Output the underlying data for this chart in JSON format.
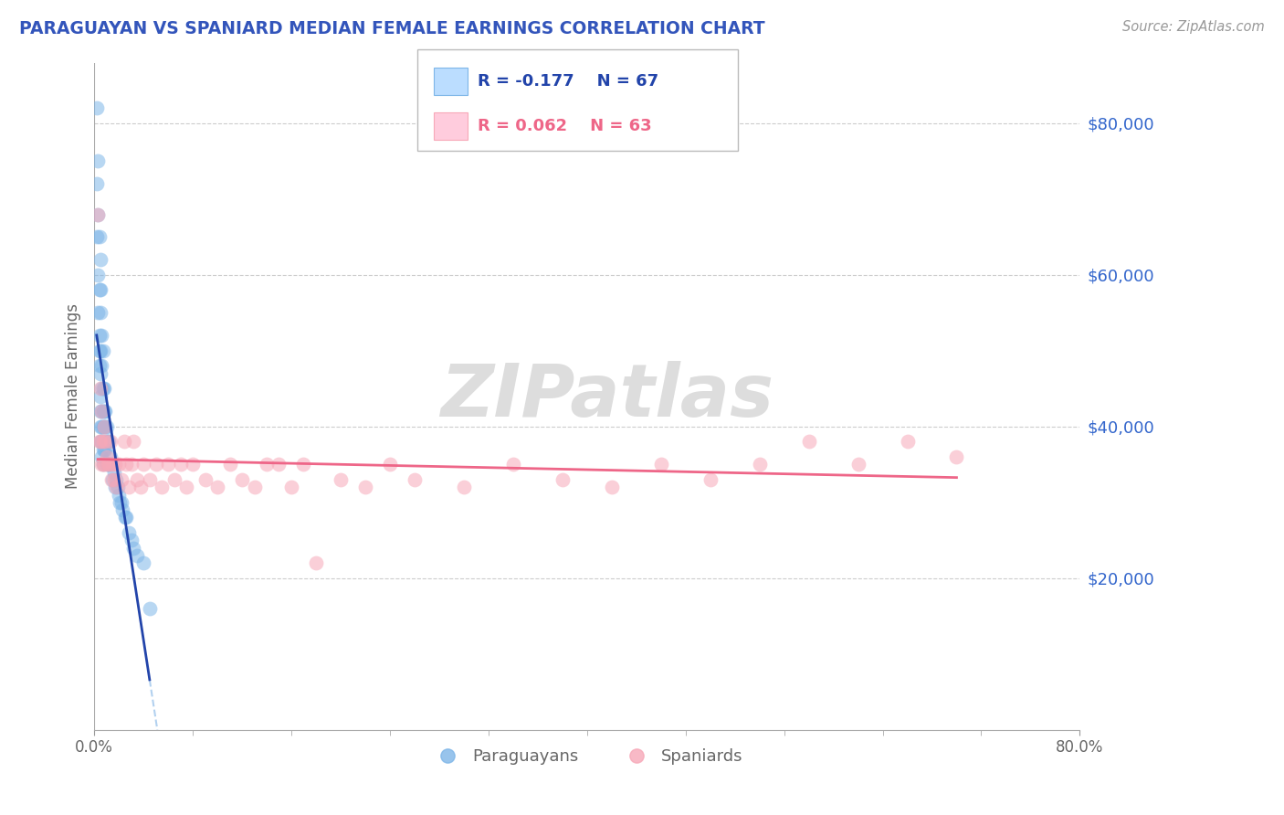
{
  "title": "PARAGUAYAN VS SPANIARD MEDIAN FEMALE EARNINGS CORRELATION CHART",
  "source_text": "Source: ZipAtlas.com",
  "ylabel": "Median Female Earnings",
  "xlim": [
    0.0,
    0.8
  ],
  "ylim": [
    0,
    88000
  ],
  "ytick_labels": [
    "$20,000",
    "$40,000",
    "$60,000",
    "$80,000"
  ],
  "ytick_values": [
    20000,
    40000,
    60000,
    80000
  ],
  "xtick_labels": [
    "0.0%",
    "80.0%"
  ],
  "xtick_values": [
    0.0,
    0.8
  ],
  "legend_r1": "R = -0.177",
  "legend_n1": "N = 67",
  "legend_r2": "R = 0.062",
  "legend_n2": "N = 63",
  "blue_color": "#7EB6E8",
  "pink_color": "#F7A8B8",
  "blue_line_color": "#2244AA",
  "pink_line_color": "#EE6688",
  "dashed_line_color": "#AACCEE",
  "legend_blue_box": "#BBDDFF",
  "legend_pink_box": "#FFCCDD",
  "title_color": "#3355BB",
  "axis_label_color": "#666666",
  "ytick_color": "#3366CC",
  "grid_color": "#CCCCCC",
  "watermark_color": "#DDDDDD",
  "paraguayan_x": [
    0.002,
    0.002,
    0.002,
    0.003,
    0.003,
    0.003,
    0.003,
    0.004,
    0.004,
    0.004,
    0.004,
    0.004,
    0.005,
    0.005,
    0.005,
    0.005,
    0.005,
    0.005,
    0.005,
    0.005,
    0.005,
    0.006,
    0.006,
    0.006,
    0.006,
    0.006,
    0.006,
    0.006,
    0.007,
    0.007,
    0.007,
    0.007,
    0.007,
    0.007,
    0.008,
    0.008,
    0.008,
    0.008,
    0.009,
    0.009,
    0.009,
    0.01,
    0.01,
    0.01,
    0.011,
    0.011,
    0.012,
    0.012,
    0.013,
    0.014,
    0.015,
    0.016,
    0.017,
    0.018,
    0.019,
    0.02,
    0.021,
    0.022,
    0.023,
    0.025,
    0.026,
    0.028,
    0.03,
    0.032,
    0.035,
    0.04,
    0.045
  ],
  "paraguayan_y": [
    82000,
    72000,
    65000,
    75000,
    68000,
    60000,
    55000,
    65000,
    58000,
    52000,
    50000,
    48000,
    62000,
    58000,
    55000,
    50000,
    47000,
    44000,
    42000,
    40000,
    38000,
    52000,
    48000,
    45000,
    42000,
    40000,
    38000,
    36000,
    50000,
    45000,
    42000,
    40000,
    37000,
    35000,
    45000,
    42000,
    40000,
    37000,
    42000,
    40000,
    37000,
    40000,
    38000,
    35000,
    38000,
    35000,
    38000,
    35000,
    36000,
    35000,
    33000,
    34000,
    32000,
    33000,
    32000,
    31000,
    30000,
    30000,
    29000,
    28000,
    28000,
    26000,
    25000,
    24000,
    23000,
    22000,
    16000
  ],
  "spaniard_x": [
    0.003,
    0.004,
    0.005,
    0.005,
    0.006,
    0.006,
    0.007,
    0.007,
    0.008,
    0.008,
    0.009,
    0.01,
    0.011,
    0.012,
    0.013,
    0.014,
    0.015,
    0.016,
    0.017,
    0.018,
    0.02,
    0.022,
    0.024,
    0.026,
    0.028,
    0.03,
    0.032,
    0.035,
    0.038,
    0.04,
    0.045,
    0.05,
    0.055,
    0.06,
    0.065,
    0.07,
    0.075,
    0.08,
    0.09,
    0.1,
    0.11,
    0.12,
    0.13,
    0.14,
    0.15,
    0.16,
    0.17,
    0.18,
    0.2,
    0.22,
    0.24,
    0.26,
    0.3,
    0.34,
    0.38,
    0.42,
    0.46,
    0.5,
    0.54,
    0.58,
    0.62,
    0.66,
    0.7
  ],
  "spaniard_y": [
    68000,
    38000,
    45000,
    38000,
    42000,
    35000,
    38000,
    35000,
    40000,
    35000,
    38000,
    36000,
    35000,
    35000,
    38000,
    33000,
    35000,
    33000,
    35000,
    32000,
    35000,
    33000,
    38000,
    35000,
    32000,
    35000,
    38000,
    33000,
    32000,
    35000,
    33000,
    35000,
    32000,
    35000,
    33000,
    35000,
    32000,
    35000,
    33000,
    32000,
    35000,
    33000,
    32000,
    35000,
    35000,
    32000,
    35000,
    22000,
    33000,
    32000,
    35000,
    33000,
    32000,
    35000,
    33000,
    32000,
    35000,
    33000,
    35000,
    38000,
    35000,
    38000,
    36000
  ]
}
